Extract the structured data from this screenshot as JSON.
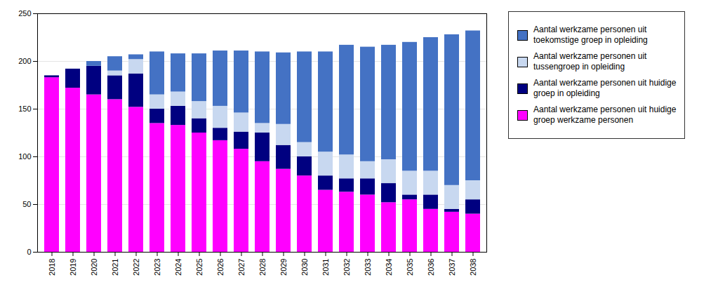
{
  "chart_data": {
    "type": "bar",
    "stacked": true,
    "categories": [
      "2018",
      "2019",
      "2020",
      "2021",
      "2022",
      "2023",
      "2024",
      "2025",
      "2026",
      "2027",
      "2028",
      "2029",
      "2030",
      "2031",
      "2032",
      "2033",
      "2034",
      "2035",
      "2036",
      "2037",
      "2038"
    ],
    "series": [
      {
        "name": "Aantal werkzame personen uit huidige\ngroep werkzame personen",
        "color": "#FF00FF",
        "values": [
          183,
          172,
          165,
          160,
          152,
          135,
          133,
          125,
          117,
          108,
          95,
          87,
          80,
          65,
          63,
          60,
          52,
          55,
          45,
          42,
          40
        ]
      },
      {
        "name": "Aantal werkzame personen uit huidige\ngroep in opleiding",
        "color": "#000080",
        "values": [
          2,
          20,
          30,
          25,
          35,
          15,
          20,
          15,
          13,
          18,
          30,
          25,
          20,
          15,
          14,
          17,
          20,
          5,
          15,
          3,
          15
        ]
      },
      {
        "name": "Aantal werkzame personen uit\ntussengroep in opleiding",
        "color": "#C8D8F0",
        "values": [
          0,
          0,
          0,
          5,
          15,
          15,
          15,
          18,
          23,
          20,
          10,
          22,
          15,
          25,
          25,
          18,
          25,
          25,
          25,
          25,
          20
        ]
      },
      {
        "name": "Aantal werkzame personen uit\ntoekomstige groep in opleiding",
        "color": "#4472C4",
        "values": [
          0,
          0,
          5,
          15,
          5,
          45,
          40,
          50,
          58,
          65,
          75,
          75,
          95,
          105,
          115,
          120,
          120,
          135,
          140,
          158,
          157
        ]
      }
    ],
    "ylim": [
      0,
      250
    ],
    "yticks": [
      0,
      50,
      100,
      150,
      200,
      250
    ],
    "grid": true,
    "legend": "right"
  }
}
